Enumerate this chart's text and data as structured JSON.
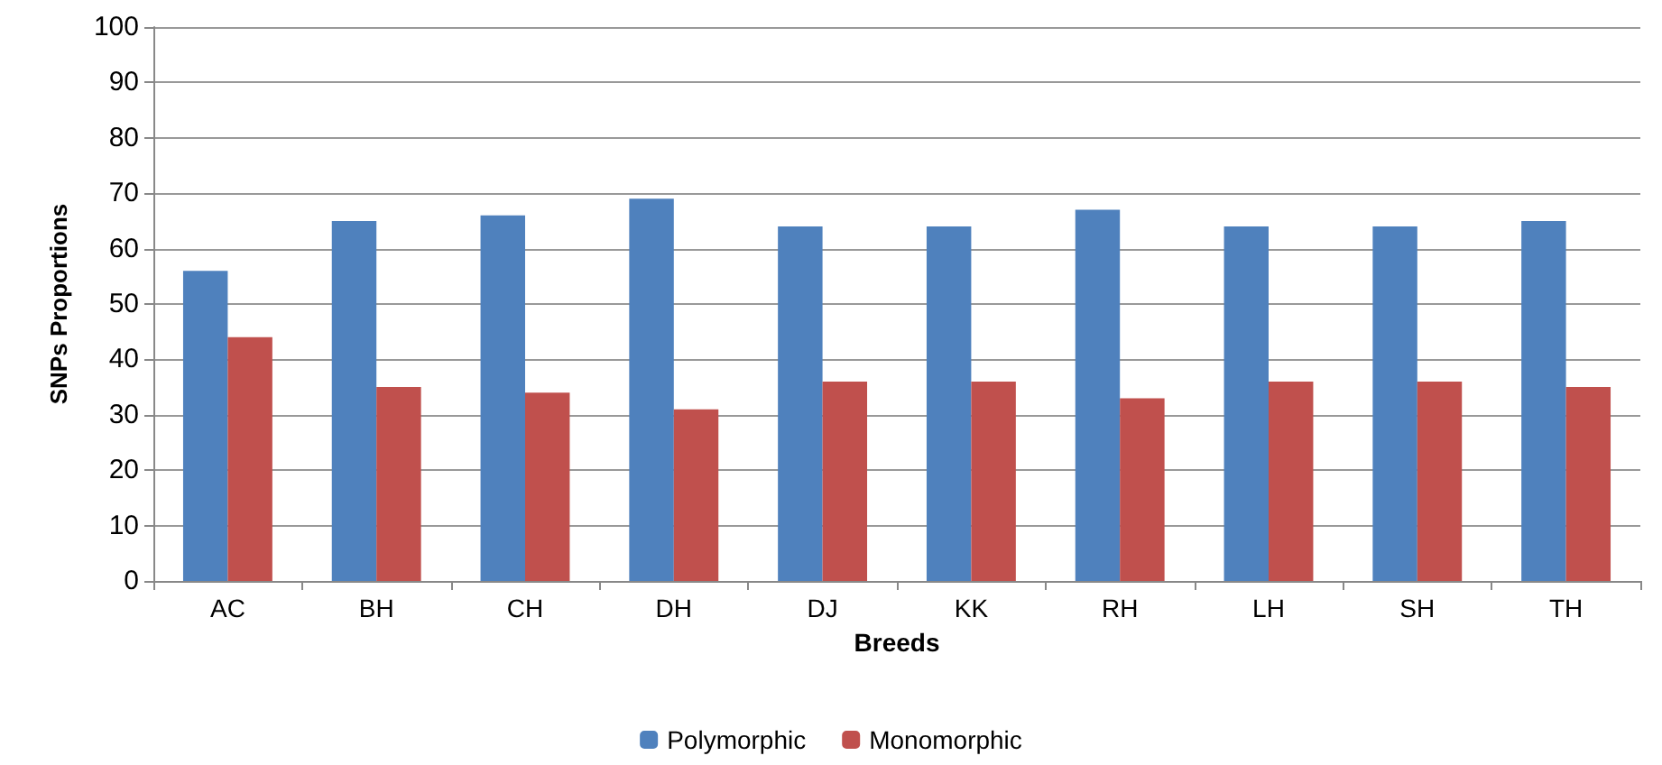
{
  "chart_data": {
    "type": "bar",
    "xlabel": "Breeds",
    "ylabel": "SNPs Proportions",
    "categories": [
      "AC",
      "BH",
      "CH",
      "DH",
      "DJ",
      "KK",
      "RH",
      "LH",
      "SH",
      "TH"
    ],
    "series": [
      {
        "name": "Polymorphic",
        "color": "#4f81bd",
        "values": [
          56,
          65,
          66,
          69,
          64,
          64,
          67,
          64,
          64,
          65
        ]
      },
      {
        "name": "Monomorphic",
        "color": "#c0504d",
        "values": [
          44,
          35,
          34,
          31,
          36,
          36,
          33,
          36,
          36,
          35
        ]
      }
    ],
    "ylim": [
      0,
      100
    ],
    "yticks": [
      0,
      10,
      20,
      30,
      40,
      50,
      60,
      70,
      80,
      90,
      100
    ],
    "grid": "y",
    "legend": "bottom"
  }
}
